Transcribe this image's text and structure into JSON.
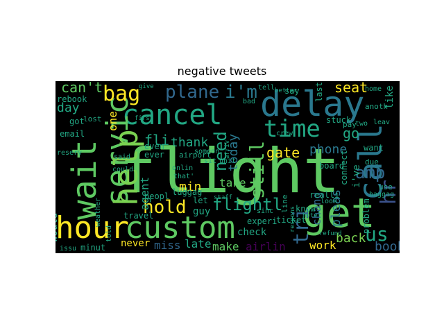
{
  "title": "negative tweets",
  "palette": {
    "background": "#000000",
    "green_light": "#7ad151",
    "green": "#5ec962",
    "teal": "#22a884",
    "teal_blue": "#2a788e",
    "blue": "#31688e",
    "yellow": "#fde725",
    "purple": "#440154",
    "indigo": "#3b528b"
  },
  "words": [
    {
      "text": "flight",
      "color": "green"
    },
    {
      "text": "hour",
      "color": "yellow"
    },
    {
      "text": "custom",
      "color": "green"
    },
    {
      "text": "get",
      "color": "green"
    },
    {
      "text": "cancel",
      "color": "teal"
    },
    {
      "text": "delay",
      "color": "teal_blue"
    },
    {
      "text": "wait",
      "color": "green"
    },
    {
      "text": "servic",
      "color": "green"
    },
    {
      "text": "help",
      "color": "green_light"
    },
    {
      "text": "call",
      "color": "teal_blue"
    },
    {
      "text": "time",
      "color": "teal"
    },
    {
      "text": "bag",
      "color": "yellow"
    },
    {
      "text": "plane",
      "color": "blue"
    },
    {
      "text": "i'm",
      "color": "teal_blue"
    },
    {
      "text": "can't",
      "color": "green"
    },
    {
      "text": "hold",
      "color": "yellow"
    },
    {
      "text": "amp",
      "color": "blue"
    },
    {
      "text": "tri",
      "color": "blue"
    },
    {
      "text": "flightl",
      "color": "teal"
    },
    {
      "text": "still",
      "color": "green"
    },
    {
      "text": "need",
      "color": "teal"
    },
    {
      "text": "us",
      "color": "teal"
    },
    {
      "text": "hr",
      "color": "indigo"
    },
    {
      "text": "gate",
      "color": "yellow"
    },
    {
      "text": "seat",
      "color": "yellow"
    },
    {
      "text": "day",
      "color": "teal"
    },
    {
      "text": "fli",
      "color": "teal"
    },
    {
      "text": "thank",
      "color": "teal"
    },
    {
      "text": "today",
      "color": "teal_blue"
    },
    {
      "text": "phone",
      "color": "teal_blue"
    },
    {
      "text": "back",
      "color": "green_light"
    },
    {
      "text": "go",
      "color": "teal"
    },
    {
      "text": "min",
      "color": "yellow"
    },
    {
      "text": "take",
      "color": "green"
    },
    {
      "text": "book",
      "color": "blue"
    },
    {
      "text": "miss",
      "color": "blue"
    },
    {
      "text": "late",
      "color": "teal"
    },
    {
      "text": "make",
      "color": "green"
    },
    {
      "text": "airlin",
      "color": "purple"
    },
    {
      "text": "work",
      "color": "yellow"
    },
    {
      "text": "pleas",
      "color": "teal_blue"
    },
    {
      "text": "chang",
      "color": "blue"
    },
    {
      "text": "agent",
      "color": "teal"
    },
    {
      "text": "check",
      "color": "teal"
    },
    {
      "text": "would",
      "color": "teal"
    },
    {
      "text": "one",
      "color": "yellow"
    },
    {
      "text": "got",
      "color": "teal"
    },
    {
      "text": "lost",
      "color": "teal"
    },
    {
      "text": "like",
      "color": "teal"
    },
    {
      "text": "say",
      "color": "teal"
    },
    {
      "text": "home",
      "color": "teal"
    },
    {
      "text": "anoth",
      "color": "teal"
    },
    {
      "text": "want",
      "color": "teal"
    },
    {
      "text": "due",
      "color": "teal"
    },
    {
      "text": "board",
      "color": "teal"
    },
    {
      "text": "realli",
      "color": "teal"
    },
    {
      "text": "know",
      "color": "teal"
    },
    {
      "text": "ticket",
      "color": "teal"
    },
    {
      "text": "experi",
      "color": "teal"
    },
    {
      "text": "sinc",
      "color": "teal"
    },
    {
      "text": "guy",
      "color": "teal"
    },
    {
      "text": "luggag",
      "color": "teal"
    },
    {
      "text": "let",
      "color": "teal"
    },
    {
      "text": "peopl",
      "color": "teal"
    },
    {
      "text": "never",
      "color": "yellow"
    },
    {
      "text": "minut",
      "color": "teal"
    },
    {
      "text": "issu",
      "color": "teal"
    },
    {
      "text": "travel",
      "color": "teal"
    },
    {
      "text": "weather",
      "color": "teal"
    },
    {
      "text": "could",
      "color": "teal"
    },
    {
      "text": "said",
      "color": "teal"
    },
    {
      "text": "even",
      "color": "teal"
    },
    {
      "text": "ever",
      "color": "teal"
    },
    {
      "text": "email",
      "color": "teal"
    },
    {
      "text": "rebook",
      "color": "teal"
    },
    {
      "text": "reserv",
      "color": "teal"
    },
    {
      "text": "told",
      "color": "teal"
    },
    {
      "text": "first",
      "color": "teal"
    },
    {
      "text": "airport",
      "color": "teal"
    },
    {
      "text": "give",
      "color": "teal"
    },
    {
      "text": "someon",
      "color": "teal"
    },
    {
      "text": "sit",
      "color": "teal"
    },
    {
      "text": "unit",
      "color": "teal"
    },
    {
      "text": "arriv",
      "color": "teal"
    },
    {
      "text": "bad",
      "color": "teal"
    },
    {
      "text": "tell",
      "color": "teal"
    },
    {
      "text": "better",
      "color": "teal"
    },
    {
      "text": "last",
      "color": "teal"
    },
    {
      "text": "stuck",
      "color": "teal"
    },
    {
      "text": "crew",
      "color": "teal"
    },
    {
      "text": "two",
      "color": "teal"
    },
    {
      "text": "pay",
      "color": "teal"
    },
    {
      "text": "leav",
      "color": "teal"
    },
    {
      "text": "connect",
      "color": "teal"
    },
    {
      "text": "problem",
      "color": "teal"
    },
    {
      "text": "use",
      "color": "teal"
    },
    {
      "text": "baggag",
      "color": "teal"
    },
    {
      "text": "refund",
      "color": "teal"
    },
    {
      "text": "respons",
      "color": "teal"
    },
    {
      "text": "line",
      "color": "teal"
    },
    {
      "text": "look",
      "color": "teal"
    },
    {
      "text": "hotel",
      "color": "teal"
    },
    {
      "text": "staff",
      "color": "teal"
    },
    {
      "text": "onlin",
      "color": "teal"
    },
    {
      "text": "that'",
      "color": "teal"
    },
    {
      "text": "i've",
      "color": "teal"
    }
  ]
}
